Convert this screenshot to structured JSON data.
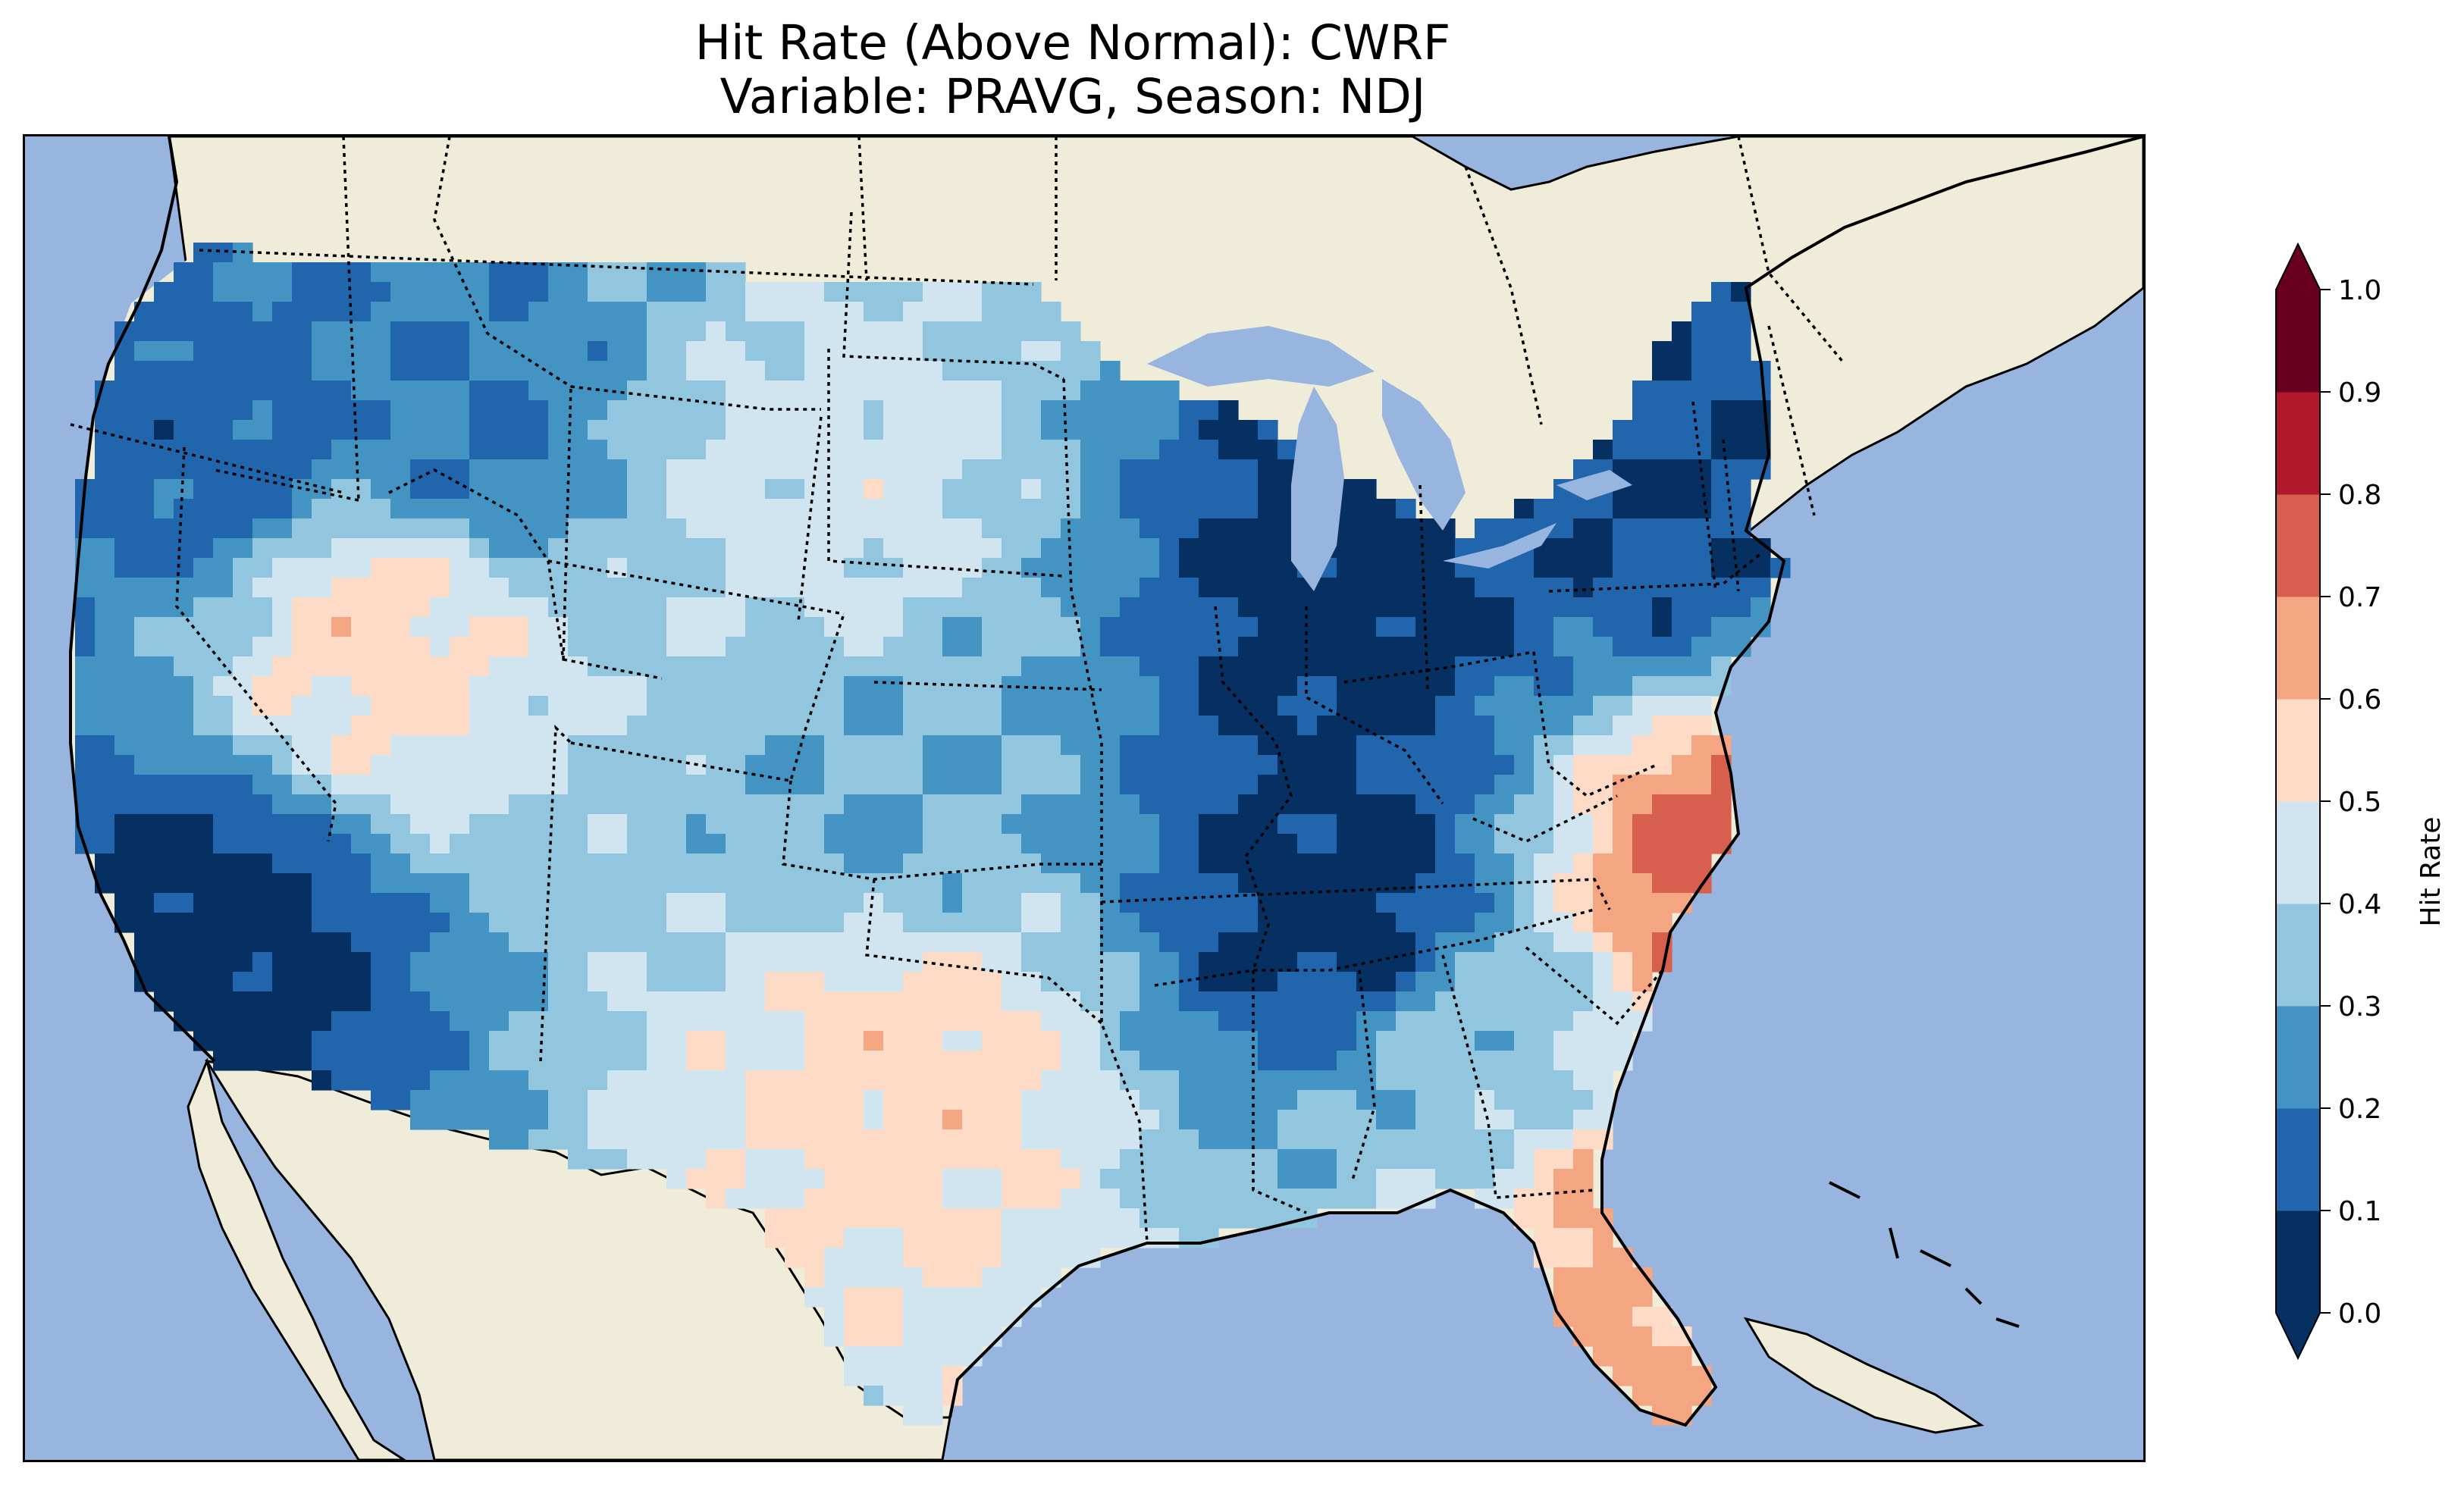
{
  "title": {
    "line1": "Hit Rate (Above Normal): CWRF",
    "line2": "Variable: PRAVG, Season: NDJ"
  },
  "colors": {
    "ocean": "#98b5e0",
    "land": "#efedda",
    "coastline": "#000000",
    "border": "#000000"
  },
  "colorbar": {
    "label": "Hit Rate",
    "ticks": [
      "0.0",
      "0.1",
      "0.2",
      "0.3",
      "0.4",
      "0.5",
      "0.6",
      "0.7",
      "0.8",
      "0.9",
      "1.0"
    ],
    "extend": "both",
    "colors": [
      "#053061",
      "#2166ac",
      "#4393c3",
      "#92c5de",
      "#d1e5f0",
      "#fddbc7",
      "#f4a582",
      "#d6604d",
      "#b2182b",
      "#67001f"
    ],
    "under_color": "#053061",
    "over_color": "#67001f"
  },
  "chart_data": {
    "type": "heatmap",
    "title": "Hit Rate (Above Normal): CWRF\nVariable: PRAVG, Season: NDJ",
    "colorbar_label": "Hit Rate",
    "value_range": [
      0.0,
      1.0
    ],
    "bin_edges": [
      0.0,
      0.1,
      0.2,
      0.3,
      0.4,
      0.5,
      0.6,
      0.7,
      0.8,
      0.9,
      1.0
    ],
    "regions": [
      {
        "name": "Pacific Northwest coast",
        "value": 0.15
      },
      {
        "name": "Northern Rockies (Idaho/Montana)",
        "value": 0.2
      },
      {
        "name": "Great Basin (Nevada/Utah)",
        "value": 0.55
      },
      {
        "name": "Southern California",
        "value": 0.05
      },
      {
        "name": "Northern Plains",
        "value": 0.45
      },
      {
        "name": "Central Plains (Kansas)",
        "value": 0.3
      },
      {
        "name": "Southern Plains (Texas/Oklahoma)",
        "value": 0.55
      },
      {
        "name": "Michigan / Great Lakes",
        "value": 0.05
      },
      {
        "name": "Ohio Valley / Tennessee",
        "value": 0.05
      },
      {
        "name": "Northeast (New York/New England)",
        "value": 0.1
      },
      {
        "name": "North Carolina coast",
        "value": 0.75
      },
      {
        "name": "Florida peninsula",
        "value": 0.65
      },
      {
        "name": "Southeast (Georgia/Alabama)",
        "value": 0.35
      }
    ]
  }
}
